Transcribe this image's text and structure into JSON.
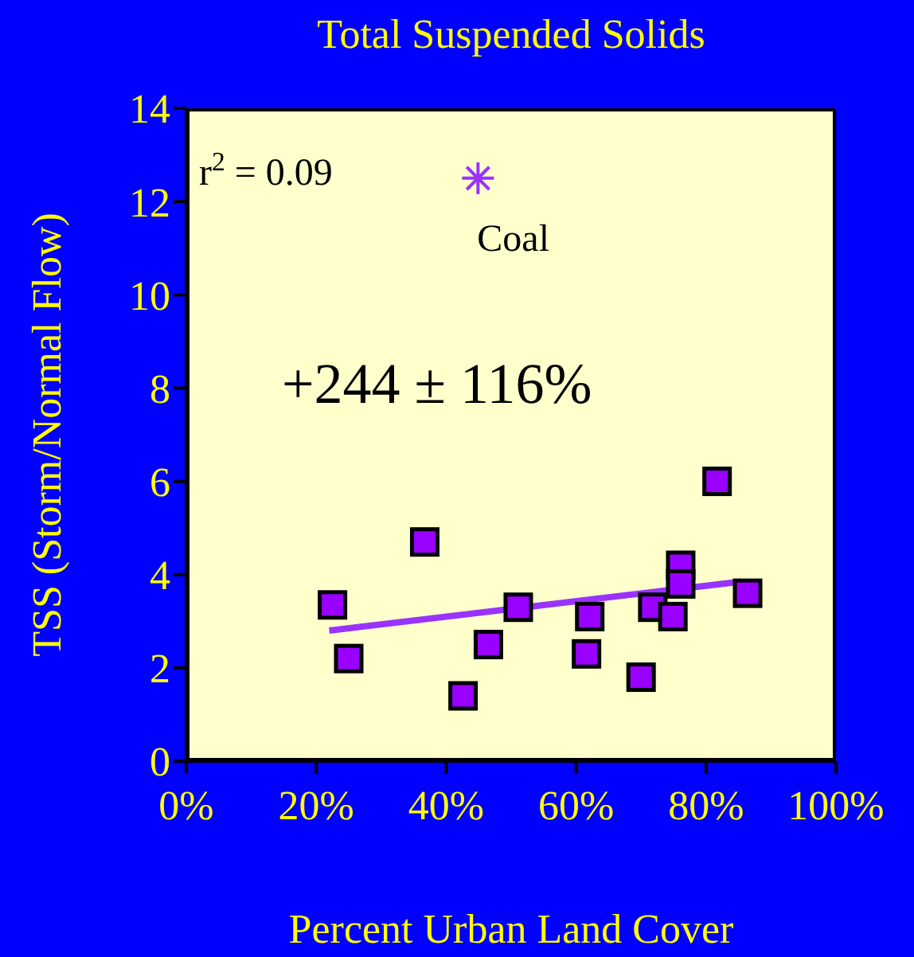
{
  "chart_data": {
    "type": "scatter",
    "title": "Total Suspended Solids",
    "xlabel": "Percent Urban Land Cover",
    "ylabel": "TSS (Storm/Normal Flow)",
    "annotations": [
      "r$^{2}$ = 0.09",
      "+244 ± 116%"
    ],
    "xlim": [
      0,
      100
    ],
    "xticks": [
      {
        "value": 0,
        "label": "0%"
      },
      {
        "value": 20,
        "label": "20%"
      },
      {
        "value": 40,
        "label": "40%"
      },
      {
        "value": 60,
        "label": "60%"
      },
      {
        "value": 80,
        "label": "80%"
      },
      {
        "value": 100,
        "label": "100%"
      }
    ],
    "ylim": [
      0,
      14
    ],
    "yticks": [
      0,
      2,
      4,
      6,
      8,
      10,
      12,
      14
    ],
    "series": [
      {
        "marker": "square",
        "color": "#9900ff",
        "x": [
          22.5,
          25,
          36.7,
          42.6,
          46.5,
          51.1,
          61.6,
          62.1,
          70,
          71.8,
          74.9,
          76.1,
          76.1,
          81.7,
          86.4
        ],
        "values": [
          3.35,
          2.2,
          4.7,
          1.4,
          2.5,
          3.3,
          2.3,
          3.1,
          1.8,
          3.3,
          3.1,
          4.2,
          3.8,
          6.0,
          3.6
        ]
      },
      {
        "type": "line",
        "marker": "none",
        "color": "#9933ff",
        "x": [
          22,
          85.4
        ],
        "values": [
          2.8,
          3.85
        ]
      },
      {
        "marker": "cross",
        "name": "Coal",
        "color": "#9933ff",
        "x": [
          44.9
        ],
        "values": [
          12.5
        ]
      }
    ]
  }
}
